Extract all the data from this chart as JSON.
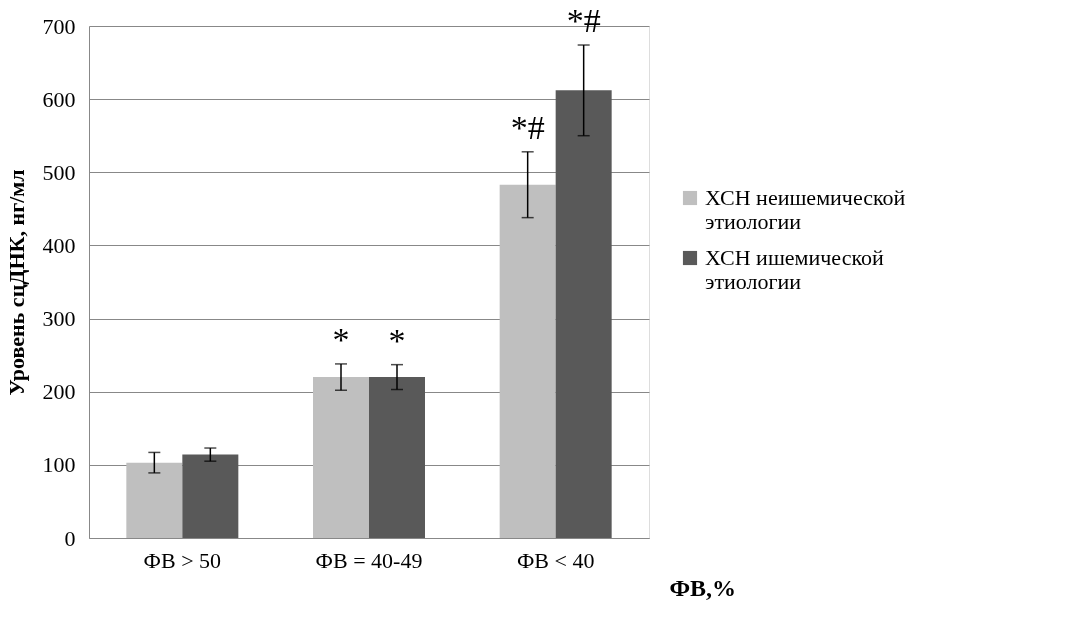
{
  "chart_data": {
    "type": "bar",
    "categories": [
      "ФВ > 50",
      "ФВ = 40-49",
      "ФВ < 40"
    ],
    "series": [
      {
        "name": "ХСН неишемической этиологии",
        "color": "#bfbfbf",
        "values": [
          103,
          220,
          483
        ],
        "errors": [
          14,
          18,
          45
        ]
      },
      {
        "name": "ХСН ишемической этиологии",
        "color": "#595959",
        "values": [
          114,
          220,
          612
        ],
        "errors": [
          9,
          17,
          62
        ]
      }
    ],
    "xlabel": "ФВ,%",
    "ylabel": "Уровень сцДНК, нг/мл",
    "ylim": [
      0,
      700
    ],
    "yticks": [
      0,
      100,
      200,
      300,
      400,
      500,
      600,
      700
    ],
    "grid": "y",
    "legend": "right",
    "annotations": [
      {
        "text": "*",
        "x": "ФВ = 40-49",
        "y": 220
      },
      {
        "text": "*",
        "x": "ФВ = 40-49",
        "y": 220
      },
      {
        "text": "*#",
        "x": "ФВ < 40",
        "y": 483
      },
      {
        "text": "*#",
        "x": "ФВ < 40",
        "y": 612
      }
    ]
  }
}
